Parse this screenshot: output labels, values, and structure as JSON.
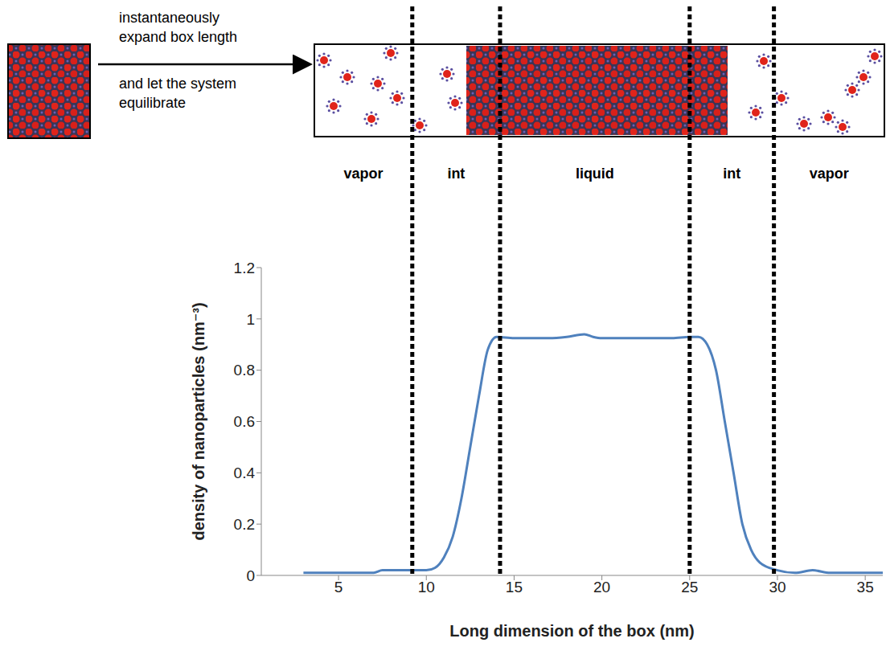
{
  "chart_data": {
    "type": "line",
    "x_label": "Long dimension of the box (nm)",
    "y_label": "density of nanoparticles (nm⁻³)",
    "x": [
      3,
      5,
      7,
      7.5,
      9,
      10,
      10.5,
      11,
      11.5,
      12,
      12.5,
      13,
      13.5,
      14,
      15,
      17,
      18,
      19,
      19.5,
      20,
      22,
      24,
      25,
      25.5,
      26,
      26.5,
      27,
      27.5,
      28,
      28.5,
      29,
      30,
      31,
      32,
      33,
      34,
      35,
      36
    ],
    "values": [
      0.01,
      0.01,
      0.01,
      0.02,
      0.02,
      0.02,
      0.03,
      0.07,
      0.15,
      0.3,
      0.5,
      0.7,
      0.88,
      0.93,
      0.925,
      0.925,
      0.93,
      0.94,
      0.93,
      0.925,
      0.925,
      0.925,
      0.93,
      0.93,
      0.9,
      0.8,
      0.6,
      0.4,
      0.2,
      0.1,
      0.05,
      0.02,
      0.01,
      0.02,
      0.01,
      0.01,
      0.01,
      0.01
    ],
    "color": "#4f81bd",
    "xlim": [
      0.6,
      36
    ],
    "ylim": [
      0,
      1.2
    ],
    "xticks": [
      5,
      10,
      15,
      20,
      25,
      30,
      35
    ],
    "yticks": [
      0,
      0.2,
      0.4,
      0.6,
      0.8,
      1,
      1.2
    ],
    "grid": false,
    "vlines": [
      9.2,
      14.2,
      25,
      29.8
    ],
    "regions": [
      "vapor",
      "int",
      "liquid",
      "int",
      "vapor"
    ],
    "arrow_text_above": [
      "instantaneously",
      "expand box length"
    ],
    "arrow_text_below": [
      "and let the system",
      "equilibrate"
    ]
  }
}
